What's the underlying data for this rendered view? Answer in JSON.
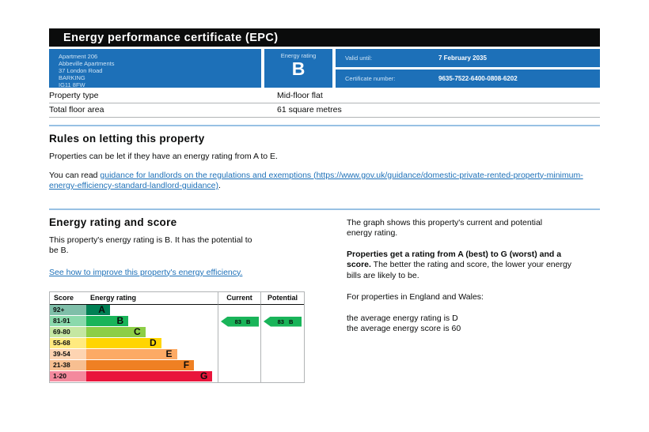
{
  "header": {
    "title": "Energy performance certificate (EPC)"
  },
  "summary": {
    "box_color": "#1d70b8",
    "address_lines": [
      "Apartment 206",
      "Abbeville Apartments",
      "37 London Road",
      "BARKING",
      "IG11 8FW"
    ],
    "energy_rating_label": "Energy rating",
    "energy_rating_value": "B",
    "valid_until_label": "Valid until:",
    "valid_until_value": "7 February 2035",
    "certificate_number_label": "Certificate number:",
    "certificate_number_value": "9635-7522-6400-0808-6202"
  },
  "property_details": {
    "rows": [
      {
        "label": "Property type",
        "value": "Mid-floor flat"
      },
      {
        "label": "Total floor area",
        "value": "61 square metres"
      }
    ]
  },
  "letting_rules": {
    "heading": "Rules on letting this property",
    "paragraph1": "Properties can be let if they have an energy rating from A to E.",
    "paragraph2_prefix": "You can read ",
    "link_text": "guidance for landlords on the regulations and exemptions (https://www.gov.uk/guidance/domestic-private-rented-property-minimum-energy-efficiency-standard-landlord-guidance)",
    "paragraph2_suffix": "."
  },
  "rating_section": {
    "heading": "Energy rating and score",
    "paragraph1": "This property's energy rating is B. It has the potential to be B.",
    "improve_link_text": "See how to improve this property's energy efficiency.",
    "right_paragraph1": "The graph shows this property's current and potential energy rating.",
    "right_paragraph2_bold": "Properties get a rating from A (best) to G (worst) and a score.",
    "right_paragraph2_rest": " The better the rating and score, the lower your energy bills are likely to be.",
    "right_paragraph3": "For properties in England and Wales:",
    "right_avg_rating_line": "the average energy rating is D",
    "right_avg_score_line": "the average energy score is 60"
  },
  "chart_data": {
    "type": "bar",
    "description": "EPC energy efficiency rating graph",
    "columns": [
      "Score",
      "Energy rating",
      "Current",
      "Potential"
    ],
    "bands": [
      {
        "score_range": "92+",
        "letter": "A",
        "color": "#008054",
        "tint": "#7fbfa9",
        "bar_pct": 18
      },
      {
        "score_range": "81-91",
        "letter": "B",
        "color": "#19b459",
        "tint": "#8ad9ac",
        "bar_pct": 32
      },
      {
        "score_range": "69-80",
        "letter": "C",
        "color": "#8dce46",
        "tint": "#c5e7a2",
        "bar_pct": 45
      },
      {
        "score_range": "55-68",
        "letter": "D",
        "color": "#ffd500",
        "tint": "#ffea7f",
        "bar_pct": 57
      },
      {
        "score_range": "39-54",
        "letter": "E",
        "color": "#fcaa65",
        "tint": "#fdd4b2",
        "bar_pct": 69
      },
      {
        "score_range": "21-38",
        "letter": "F",
        "color": "#ef8023",
        "tint": "#f7bf91",
        "bar_pct": 82
      },
      {
        "score_range": "1-20",
        "letter": "G",
        "color": "#e9153b",
        "tint": "#f4899d",
        "bar_pct": 96
      }
    ],
    "current": {
      "score": 83,
      "band": "B",
      "band_index": 1,
      "arrow_color": "#19b459"
    },
    "potential": {
      "score": 83,
      "band": "B",
      "band_index": 1,
      "arrow_color": "#19b459"
    }
  }
}
